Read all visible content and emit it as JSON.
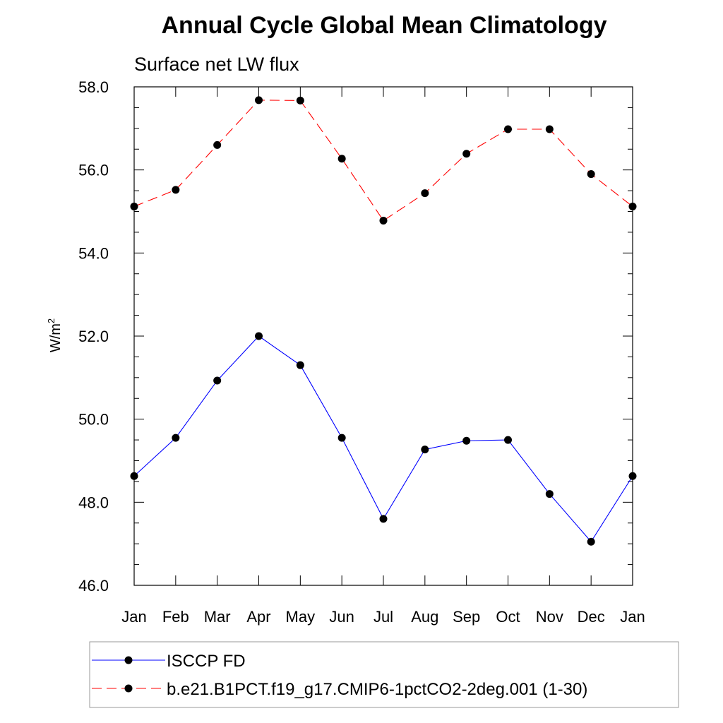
{
  "chart_data": {
    "type": "line",
    "title": "Annual Cycle Global Mean Climatology",
    "subtitle": "Surface net LW flux",
    "ylabel": "W/m",
    "ylabel_sup": "2",
    "xlabel": "",
    "categories": [
      "Jan",
      "Feb",
      "Mar",
      "Apr",
      "May",
      "Jun",
      "Jul",
      "Aug",
      "Sep",
      "Oct",
      "Nov",
      "Dec",
      "Jan"
    ],
    "ylim": [
      46.0,
      58.0
    ],
    "yticks": [
      "46.0",
      "48.0",
      "50.0",
      "52.0",
      "54.0",
      "56.0",
      "58.0"
    ],
    "grid": false,
    "legend_position": "bottom",
    "series": [
      {
        "name": "ISCCP FD",
        "color": "#0000ff",
        "style": "solid",
        "marker": "circle",
        "values": [
          48.63,
          49.55,
          50.93,
          52.0,
          51.3,
          49.55,
          47.6,
          49.27,
          49.48,
          49.5,
          48.2,
          47.05,
          48.63
        ]
      },
      {
        "name": "b.e21.B1PCT.f19_g17.CMIP6-1pctCO2-2deg.001 (1-30)",
        "color": "#ff0000",
        "style": "dashed",
        "marker": "circle",
        "values": [
          55.12,
          55.52,
          56.6,
          57.68,
          57.67,
          56.27,
          54.78,
          55.44,
          56.39,
          56.98,
          56.98,
          55.9,
          55.12
        ]
      }
    ]
  }
}
